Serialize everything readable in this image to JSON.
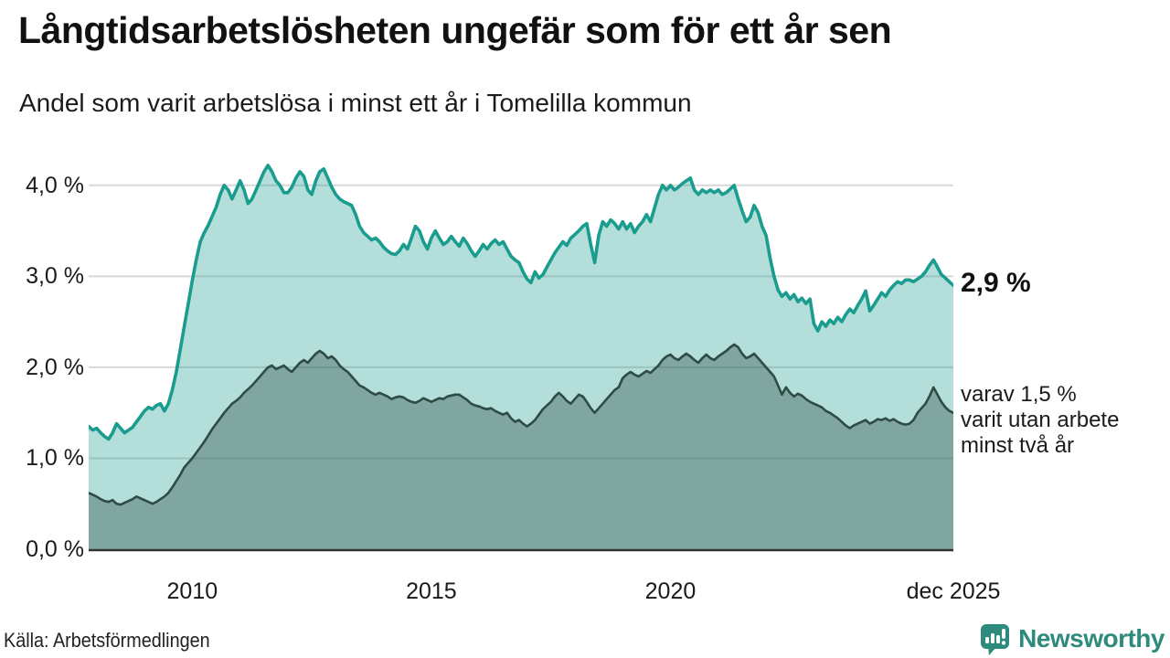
{
  "title": "Långtidsarbetslösheten ungefär som för ett år sen",
  "subtitle": "Andel som varit arbetslösa i minst ett år i Tomelilla kommun",
  "annotations": {
    "latest_value": "2,9 %",
    "secondary_lines": [
      "varav 1,5 %",
      "varit utan arbete",
      "minst två år"
    ]
  },
  "source": {
    "text": "Källa: Arbetsförmedlingen"
  },
  "logo": {
    "name": "Newsworthy",
    "icon": "newsworthy-speech-bubble-chart-icon",
    "color": "#2E8A7C"
  },
  "colors": {
    "line_primary": "#1A9C8E",
    "area_primary_fill_opacity": 0.33,
    "line_secondary": "#2E4B44",
    "area_secondary_fill_opacity": 0.38,
    "grid": "#D8D8D8",
    "axis": "#333333",
    "text": "#1A1A1A",
    "brand": "#2E8A7C"
  },
  "chart_data": {
    "type": "area",
    "title": "Andel som varit arbetslösa i minst ett år i Tomelilla kommun",
    "unit": "%",
    "x_start": "2007-11",
    "x_end": "2025-12",
    "frequency": "monthly",
    "ylim": [
      0,
      4.43
    ],
    "grid": true,
    "legend_position": "none",
    "yticks": [
      {
        "value": 4,
        "label": "4,0 %"
      },
      {
        "value": 3,
        "label": "3,0 %"
      },
      {
        "value": 2,
        "label": "2,0 %"
      },
      {
        "value": 1,
        "label": "1,0 %"
      },
      {
        "value": 0,
        "label": "0,0 %"
      }
    ],
    "xticks": [
      {
        "index": 26,
        "label": "2010"
      },
      {
        "index": 86,
        "label": "2015"
      },
      {
        "index": 146,
        "label": "2020"
      },
      {
        "index": 217,
        "label": "dec 2025"
      }
    ],
    "series": [
      {
        "name": "Arbetslösa minst ett år",
        "latest_value": 2.9,
        "values": [
          1.35,
          1.31,
          1.33,
          1.28,
          1.24,
          1.21,
          1.28,
          1.38,
          1.33,
          1.28,
          1.31,
          1.34,
          1.4,
          1.46,
          1.52,
          1.56,
          1.54,
          1.58,
          1.6,
          1.52,
          1.6,
          1.75,
          1.95,
          2.2,
          2.45,
          2.7,
          2.95,
          3.18,
          3.38,
          3.48,
          3.56,
          3.66,
          3.76,
          3.9,
          4.0,
          3.95,
          3.85,
          3.95,
          4.05,
          3.95,
          3.8,
          3.85,
          3.95,
          4.05,
          4.15,
          4.22,
          4.15,
          4.05,
          4.0,
          3.92,
          3.92,
          3.98,
          4.08,
          4.15,
          4.1,
          3.95,
          3.9,
          4.05,
          4.15,
          4.18,
          4.08,
          3.98,
          3.9,
          3.85,
          3.82,
          3.8,
          3.78,
          3.68,
          3.55,
          3.48,
          3.44,
          3.4,
          3.42,
          3.38,
          3.32,
          3.28,
          3.25,
          3.24,
          3.28,
          3.35,
          3.3,
          3.42,
          3.55,
          3.5,
          3.38,
          3.3,
          3.42,
          3.5,
          3.42,
          3.35,
          3.38,
          3.44,
          3.38,
          3.33,
          3.42,
          3.36,
          3.28,
          3.22,
          3.28,
          3.35,
          3.3,
          3.36,
          3.4,
          3.35,
          3.38,
          3.3,
          3.22,
          3.18,
          3.15,
          3.05,
          2.97,
          2.93,
          3.05,
          2.98,
          3.02,
          3.1,
          3.18,
          3.26,
          3.32,
          3.38,
          3.34,
          3.42,
          3.46,
          3.5,
          3.55,
          3.58,
          3.35,
          3.15,
          3.45,
          3.6,
          3.55,
          3.62,
          3.58,
          3.52,
          3.6,
          3.52,
          3.58,
          3.48,
          3.55,
          3.6,
          3.68,
          3.6,
          3.75,
          3.9,
          4.0,
          3.95,
          4.0,
          3.95,
          3.98,
          4.02,
          4.05,
          4.08,
          3.95,
          3.9,
          3.95,
          3.92,
          3.95,
          3.92,
          3.95,
          3.9,
          3.92,
          3.96,
          4.0,
          3.85,
          3.72,
          3.6,
          3.65,
          3.78,
          3.7,
          3.55,
          3.45,
          3.2,
          3.0,
          2.85,
          2.78,
          2.82,
          2.75,
          2.8,
          2.72,
          2.76,
          2.7,
          2.75,
          2.48,
          2.4,
          2.5,
          2.45,
          2.52,
          2.48,
          2.55,
          2.5,
          2.58,
          2.64,
          2.6,
          2.68,
          2.75,
          2.84,
          2.62,
          2.68,
          2.75,
          2.82,
          2.78,
          2.85,
          2.9,
          2.94,
          2.92,
          2.96,
          2.96,
          2.94,
          2.97,
          3.0,
          3.05,
          3.12,
          3.18,
          3.1,
          3.02,
          2.98,
          2.94,
          2.9
        ]
      },
      {
        "name": "varav utan arbete minst två år",
        "latest_value": 1.5,
        "values": [
          0.62,
          0.6,
          0.58,
          0.55,
          0.53,
          0.52,
          0.54,
          0.5,
          0.49,
          0.51,
          0.53,
          0.55,
          0.58,
          0.56,
          0.54,
          0.52,
          0.5,
          0.52,
          0.55,
          0.58,
          0.62,
          0.68,
          0.75,
          0.82,
          0.9,
          0.95,
          1.0,
          1.06,
          1.12,
          1.18,
          1.25,
          1.32,
          1.38,
          1.44,
          1.5,
          1.55,
          1.6,
          1.63,
          1.67,
          1.72,
          1.76,
          1.8,
          1.85,
          1.9,
          1.95,
          2.0,
          2.02,
          1.98,
          2.0,
          2.02,
          1.98,
          1.95,
          2.0,
          2.05,
          2.08,
          2.05,
          2.1,
          2.15,
          2.18,
          2.15,
          2.1,
          2.12,
          2.08,
          2.02,
          1.98,
          1.95,
          1.9,
          1.85,
          1.8,
          1.78,
          1.75,
          1.72,
          1.7,
          1.72,
          1.7,
          1.68,
          1.65,
          1.67,
          1.68,
          1.67,
          1.64,
          1.62,
          1.61,
          1.63,
          1.66,
          1.64,
          1.62,
          1.64,
          1.66,
          1.65,
          1.68,
          1.69,
          1.7,
          1.7,
          1.67,
          1.64,
          1.6,
          1.58,
          1.57,
          1.55,
          1.54,
          1.55,
          1.52,
          1.5,
          1.48,
          1.5,
          1.44,
          1.4,
          1.42,
          1.38,
          1.35,
          1.38,
          1.42,
          1.48,
          1.54,
          1.58,
          1.62,
          1.68,
          1.72,
          1.68,
          1.63,
          1.6,
          1.65,
          1.7,
          1.68,
          1.62,
          1.55,
          1.5,
          1.55,
          1.6,
          1.65,
          1.7,
          1.75,
          1.78,
          1.88,
          1.92,
          1.95,
          1.92,
          1.9,
          1.93,
          1.96,
          1.94,
          1.98,
          2.02,
          2.08,
          2.12,
          2.14,
          2.1,
          2.08,
          2.12,
          2.15,
          2.12,
          2.08,
          2.05,
          2.1,
          2.14,
          2.1,
          2.08,
          2.12,
          2.15,
          2.18,
          2.22,
          2.25,
          2.22,
          2.15,
          2.1,
          2.12,
          2.15,
          2.1,
          2.05,
          2.0,
          1.95,
          1.9,
          1.8,
          1.7,
          1.78,
          1.72,
          1.68,
          1.71,
          1.69,
          1.65,
          1.62,
          1.6,
          1.58,
          1.56,
          1.52,
          1.5,
          1.47,
          1.44,
          1.4,
          1.36,
          1.33,
          1.36,
          1.38,
          1.4,
          1.42,
          1.38,
          1.4,
          1.43,
          1.42,
          1.44,
          1.41,
          1.43,
          1.4,
          1.38,
          1.37,
          1.38,
          1.42,
          1.5,
          1.55,
          1.6,
          1.68,
          1.78,
          1.7,
          1.62,
          1.56,
          1.52,
          1.5
        ]
      }
    ]
  }
}
